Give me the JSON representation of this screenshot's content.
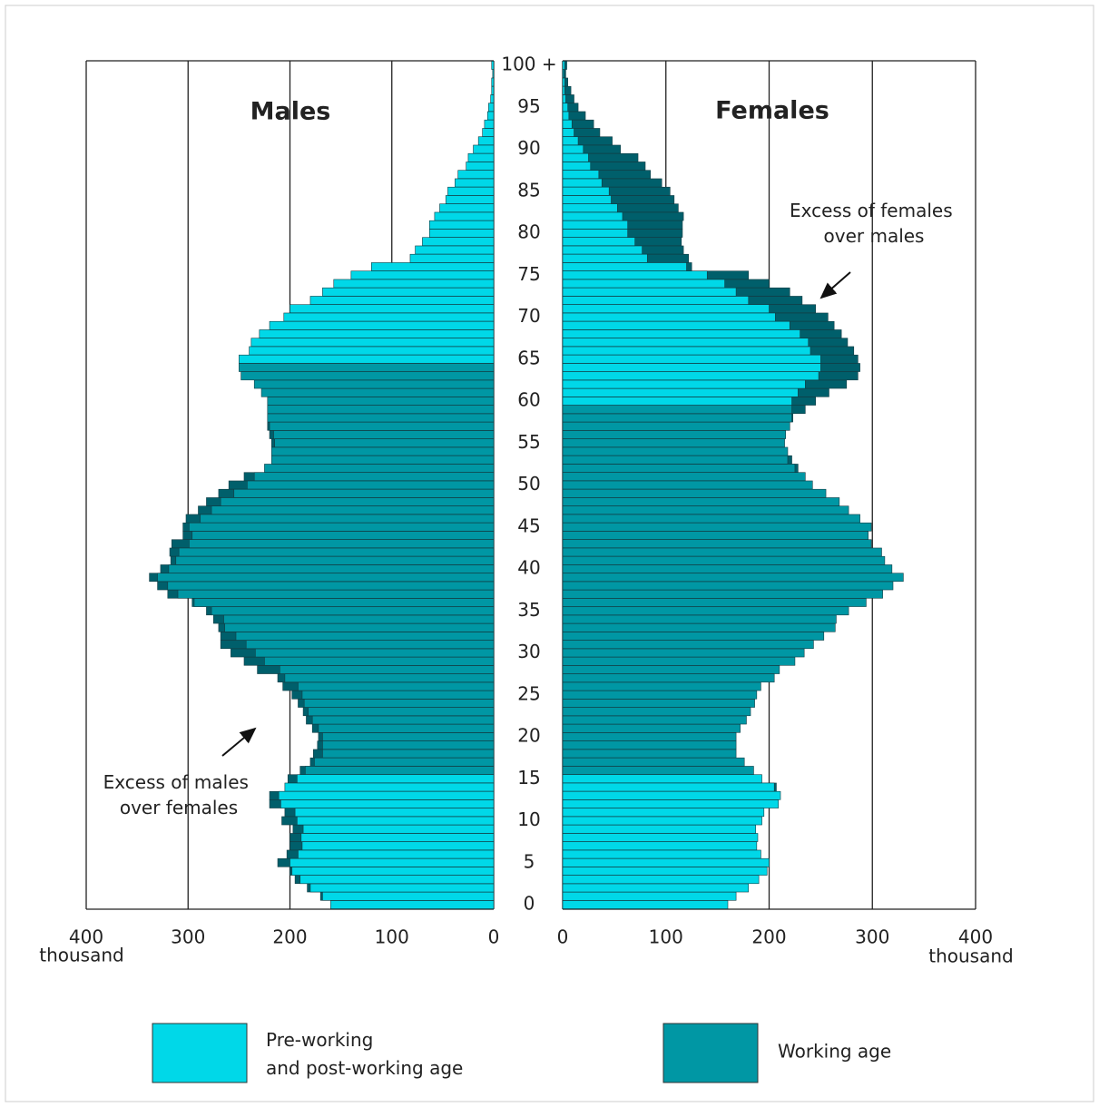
{
  "chart_data": {
    "type": "pyramid",
    "titles": [
      "Males",
      "Females"
    ],
    "categories": [
      "0",
      null,
      null,
      null,
      null,
      "5",
      null,
      null,
      null,
      null,
      "10",
      null,
      null,
      null,
      null,
      "15",
      null,
      null,
      null,
      null,
      "20",
      null,
      null,
      null,
      null,
      "25",
      null,
      null,
      null,
      null,
      "30",
      null,
      null,
      null,
      null,
      "35",
      null,
      null,
      null,
      null,
      "40",
      null,
      null,
      null,
      null,
      "45",
      null,
      null,
      null,
      null,
      "50",
      null,
      null,
      null,
      null,
      "55",
      null,
      null,
      null,
      null,
      "60",
      null,
      null,
      null,
      null,
      "65",
      null,
      null,
      null,
      null,
      "70",
      null,
      null,
      null,
      null,
      "75",
      null,
      null,
      null,
      null,
      "80",
      null,
      null,
      null,
      null,
      "85",
      null,
      null,
      null,
      null,
      "90",
      null,
      null,
      null,
      null,
      "95",
      null,
      null,
      null,
      null,
      "100 +"
    ],
    "series": [
      {
        "name": "Males",
        "values": [
          160,
          170,
          183,
          195,
          200,
          212,
          203,
          200,
          200,
          197,
          208,
          205,
          220,
          220,
          205,
          202,
          190,
          180,
          177,
          173,
          172,
          178,
          184,
          187,
          192,
          198,
          207,
          212,
          232,
          245,
          258,
          268,
          268,
          270,
          275,
          282,
          296,
          320,
          330,
          338,
          327,
          317,
          318,
          316,
          305,
          305,
          302,
          290,
          282,
          270,
          260,
          245,
          225,
          218,
          218,
          218,
          220,
          222,
          222,
          222,
          222,
          228,
          235,
          248,
          250,
          250,
          240,
          238,
          230,
          220,
          206,
          200,
          180,
          168,
          157,
          140,
          120,
          82,
          77,
          70,
          63,
          63,
          58,
          53,
          47,
          45,
          38,
          35,
          27,
          25,
          20,
          15,
          11,
          9,
          6,
          5,
          3,
          2,
          2,
          1,
          2
        ],
        "colors": [
          "#00d8e8",
          "#00d8e8",
          "#00d8e8",
          "#00d8e8",
          "#00d8e8",
          "#00d8e8",
          "#00d8e8",
          "#00d8e8",
          "#00d8e8",
          "#00d8e8",
          "#00d8e8",
          "#00d8e8",
          "#00d8e8",
          "#00d8e8",
          "#00d8e8",
          "#00d8e8",
          "#0097a4",
          "#0097a4",
          "#0097a4",
          "#0097a4",
          "#0097a4",
          "#0097a4",
          "#0097a4",
          "#0097a4",
          "#0097a4",
          "#0097a4",
          "#0097a4",
          "#0097a4",
          "#0097a4",
          "#0097a4",
          "#0097a4",
          "#0097a4",
          "#0097a4",
          "#0097a4",
          "#0097a4",
          "#0097a4",
          "#0097a4",
          "#0097a4",
          "#0097a4",
          "#0097a4",
          "#0097a4",
          "#0097a4",
          "#0097a4",
          "#0097a4",
          "#0097a4",
          "#0097a4",
          "#0097a4",
          "#0097a4",
          "#0097a4",
          "#0097a4",
          "#0097a4",
          "#0097a4",
          "#0097a4",
          "#0097a4",
          "#0097a4",
          "#0097a4",
          "#0097a4",
          "#0097a4",
          "#0097a4",
          "#0097a4",
          "#0097a4",
          "#0097a4",
          "#0097a4",
          "#0097a4",
          "#0097a4",
          "#00d8e8",
          "#00d8e8",
          "#00d8e8",
          "#00d8e8",
          "#00d8e8",
          "#00d8e8",
          "#00d8e8",
          "#00d8e8",
          "#00d8e8",
          "#00d8e8",
          "#00d8e8",
          "#00d8e8",
          "#00d8e8",
          "#00d8e8",
          "#00d8e8",
          "#00d8e8",
          "#00d8e8",
          "#00d8e8",
          "#00d8e8",
          "#00d8e8",
          "#00d8e8",
          "#00d8e8",
          "#00d8e8",
          "#00d8e8",
          "#00d8e8",
          "#00d8e8",
          "#00d8e8",
          "#00d8e8",
          "#00d8e8",
          "#00d8e8",
          "#00d8e8",
          "#00d8e8",
          "#00d8e8",
          "#00d8e8",
          "#00d8e8",
          "#00d8e8"
        ]
      },
      {
        "name": "Females",
        "values": [
          160,
          168,
          180,
          190,
          198,
          200,
          192,
          188,
          189,
          187,
          193,
          195,
          209,
          211,
          207,
          193,
          185,
          176,
          168,
          168,
          168,
          172,
          178,
          182,
          186,
          188,
          192,
          205,
          210,
          225,
          234,
          243,
          253,
          264,
          265,
          277,
          294,
          310,
          320,
          330,
          319,
          312,
          309,
          299,
          296,
          299,
          288,
          277,
          268,
          255,
          242,
          235,
          228,
          222,
          218,
          215,
          216,
          220,
          223,
          235,
          245,
          258,
          275,
          286,
          288,
          286,
          282,
          276,
          270,
          263,
          257,
          245,
          232,
          220,
          200,
          180,
          125,
          122,
          117,
          115,
          116,
          116,
          117,
          112,
          108,
          104,
          96,
          85,
          80,
          73,
          56,
          48,
          36,
          30,
          22,
          15,
          11,
          8,
          5,
          3,
          4
        ],
        "colors": [
          "#00d8e8",
          "#00d8e8",
          "#00d8e8",
          "#00d8e8",
          "#00d8e8",
          "#00d8e8",
          "#00d8e8",
          "#00d8e8",
          "#00d8e8",
          "#00d8e8",
          "#00d8e8",
          "#00d8e8",
          "#00d8e8",
          "#00d8e8",
          "#00d8e8",
          "#00d8e8",
          "#0097a4",
          "#0097a4",
          "#0097a4",
          "#0097a4",
          "#0097a4",
          "#0097a4",
          "#0097a4",
          "#0097a4",
          "#0097a4",
          "#0097a4",
          "#0097a4",
          "#0097a4",
          "#0097a4",
          "#0097a4",
          "#0097a4",
          "#0097a4",
          "#0097a4",
          "#0097a4",
          "#0097a4",
          "#0097a4",
          "#0097a4",
          "#0097a4",
          "#0097a4",
          "#0097a4",
          "#0097a4",
          "#0097a4",
          "#0097a4",
          "#0097a4",
          "#0097a4",
          "#0097a4",
          "#0097a4",
          "#0097a4",
          "#0097a4",
          "#0097a4",
          "#0097a4",
          "#0097a4",
          "#0097a4",
          "#0097a4",
          "#0097a4",
          "#0097a4",
          "#0097a4",
          "#0097a4",
          "#0097a4",
          "#0097a4",
          "#00d8e8",
          "#00d8e8",
          "#00d8e8",
          "#00d8e8",
          "#00d8e8",
          "#00d8e8",
          "#00d8e8",
          "#00d8e8",
          "#00d8e8",
          "#00d8e8",
          "#00d8e8",
          "#00d8e8",
          "#00d8e8",
          "#00d8e8",
          "#00d8e8",
          "#00d8e8",
          "#00d8e8",
          "#00d8e8",
          "#00d8e8",
          "#00d8e8",
          "#00d8e8",
          "#00d8e8",
          "#00d8e8",
          "#00d8e8",
          "#00d8e8",
          "#00d8e8",
          "#00d8e8",
          "#00d8e8",
          "#00d8e8",
          "#00d8e8",
          "#00d8e8",
          "#00d8e8",
          "#00d8e8",
          "#00d8e8",
          "#00d8e8",
          "#00d8e8",
          "#00d8e8",
          "#00d8e8",
          "#00d8e8",
          "#00d8e8",
          "#00d8e8"
        ]
      }
    ],
    "excess_color": "#005f6b",
    "xlim": [
      0,
      400
    ],
    "xticks": [
      0,
      100,
      200,
      300,
      400
    ],
    "xlabel": "thousand",
    "legend": [
      {
        "lines": [
          "Pre-working",
          "and post-working age"
        ],
        "color": "#00d8e8"
      },
      {
        "lines": [
          "Working age"
        ],
        "color": "#0097a4"
      }
    ],
    "annotations": [
      {
        "lines": [
          "Excess of females",
          "over males"
        ]
      },
      {
        "lines": [
          "Excess of males",
          "over females"
        ]
      }
    ]
  }
}
